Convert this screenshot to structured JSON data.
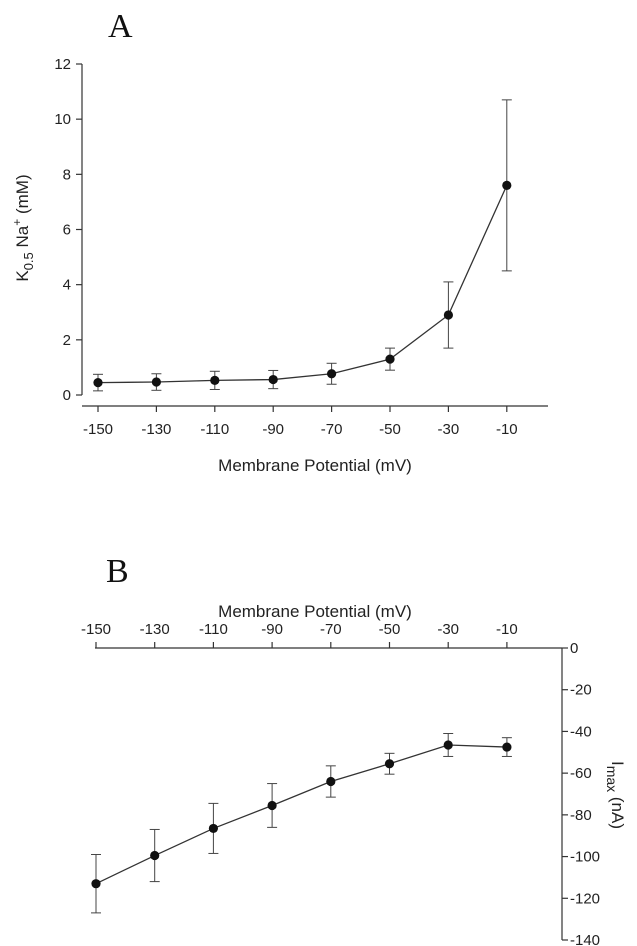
{
  "panels": [
    {
      "letter": "A",
      "chart_data": {
        "type": "line",
        "xlabel": "Membrane Potential (mV)",
        "ylabel": {
          "main": "K",
          "sub": "0.5",
          "rest": " Na",
          "sup": "+",
          "unit": " (mM)"
        },
        "x_ticks": [
          -150,
          -130,
          -110,
          -90,
          -70,
          -50,
          -30,
          -10
        ],
        "y_ticks": [
          0,
          2,
          4,
          6,
          8,
          10,
          12
        ],
        "ylim": [
          0,
          12
        ],
        "x_axis_position": "bottom",
        "y_axis_position": "left",
        "series": [
          {
            "x": [
              -150,
              -130,
              -110,
              -90,
              -70,
              -50,
              -30,
              -10
            ],
            "y": [
              0.45,
              0.47,
              0.53,
              0.56,
              0.77,
              1.3,
              2.9,
              7.6
            ],
            "yerr": [
              0.3,
              0.3,
              0.33,
              0.33,
              0.38,
              0.4,
              1.2,
              3.1
            ]
          }
        ]
      }
    },
    {
      "letter": "B",
      "chart_data": {
        "type": "line",
        "xlabel": "Membrane Potential (mV)",
        "ylabel": {
          "main": "I",
          "sub": "max",
          "rest": "",
          "sup": "",
          "unit": " (nA)"
        },
        "x_ticks": [
          -150,
          -130,
          -110,
          -90,
          -70,
          -50,
          -30,
          -10
        ],
        "y_ticks": [
          0,
          -20,
          -40,
          -60,
          -80,
          -100,
          -120,
          -140
        ],
        "ylim": [
          -140,
          0
        ],
        "x_axis_position": "top",
        "y_axis_position": "right",
        "series": [
          {
            "x": [
              -150,
              -130,
              -110,
              -90,
              -70,
              -50,
              -30,
              -10
            ],
            "y": [
              -113,
              -99.5,
              -86.5,
              -75.5,
              -64,
              -55.5,
              -46.5,
              -47.5
            ],
            "yerr": [
              14,
              12.5,
              12,
              10.5,
              7.5,
              5,
              5.5,
              4.5
            ]
          }
        ]
      }
    }
  ]
}
